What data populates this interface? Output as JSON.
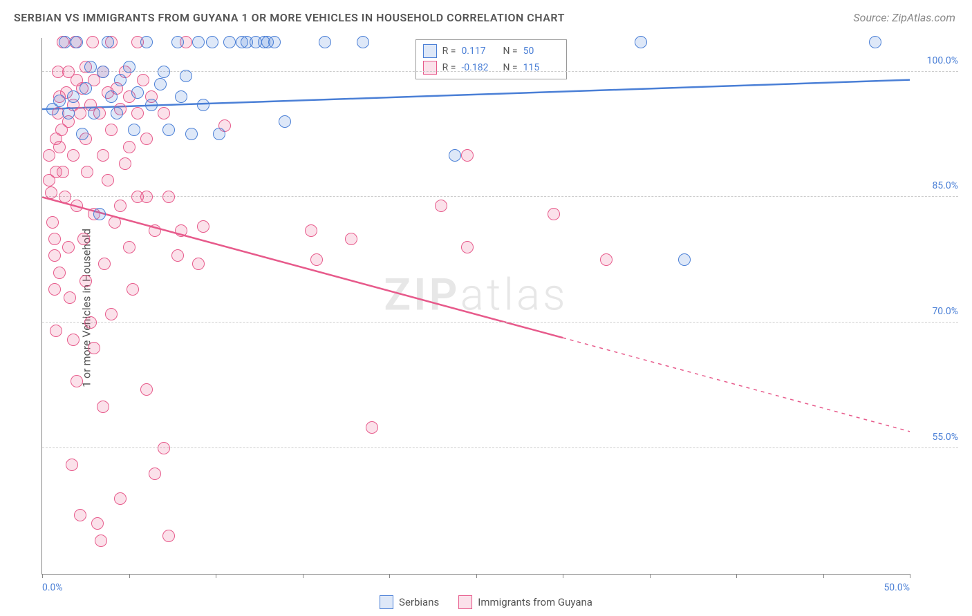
{
  "title": "SERBIAN VS IMMIGRANTS FROM GUYANA 1 OR MORE VEHICLES IN HOUSEHOLD CORRELATION CHART",
  "source": "Source: ZipAtlas.com",
  "ylabel": "1 or more Vehicles in Household",
  "watermark_a": "ZIP",
  "watermark_b": "atlas",
  "chart": {
    "type": "scatter",
    "background_color": "#ffffff",
    "grid_color": "#cccccc",
    "axis_color": "#888888",
    "tick_label_color": "#4a7fd6",
    "xlim": [
      0,
      50
    ],
    "ylim": [
      40,
      104
    ],
    "xticks": [
      0,
      25,
      50
    ],
    "xtick_labels": [
      "0.0%",
      "",
      "50.0%"
    ],
    "x_minor_ticks": [
      5,
      10,
      15,
      20,
      25,
      30,
      35,
      40,
      45
    ],
    "yticks": [
      55,
      70,
      85,
      100
    ],
    "ytick_labels": [
      "55.0%",
      "70.0%",
      "85.0%",
      "100.0%"
    ],
    "marker_radius": 9,
    "marker_stroke_width": 1.5,
    "marker_fill_opacity": 0.18
  },
  "series": {
    "serbians": {
      "label": "Serbians",
      "color": "#4a7fd6",
      "fill": "rgba(74,127,214,0.18)",
      "R": "0.117",
      "N": "50",
      "trend": {
        "x1": 0,
        "y1": 95.5,
        "x2": 50,
        "y2": 99.0,
        "solid_until_x": 50
      },
      "points": [
        [
          0.6,
          95.5
        ],
        [
          1.0,
          96.5
        ],
        [
          1.3,
          103.5
        ],
        [
          1.5,
          95.0
        ],
        [
          1.8,
          97.0
        ],
        [
          2.0,
          103.5
        ],
        [
          2.3,
          92.5
        ],
        [
          2.5,
          98.0
        ],
        [
          2.8,
          100.5
        ],
        [
          3.0,
          95.0
        ],
        [
          3.3,
          83.0
        ],
        [
          3.5,
          100.0
        ],
        [
          3.8,
          103.5
        ],
        [
          4.0,
          97.0
        ],
        [
          4.3,
          95.0
        ],
        [
          4.5,
          99.0
        ],
        [
          5.0,
          100.5
        ],
        [
          5.3,
          93.0
        ],
        [
          5.5,
          97.5
        ],
        [
          6.0,
          103.5
        ],
        [
          6.3,
          96.0
        ],
        [
          6.8,
          98.5
        ],
        [
          7.0,
          100.0
        ],
        [
          7.3,
          93.0
        ],
        [
          7.8,
          103.5
        ],
        [
          8.0,
          97.0
        ],
        [
          8.3,
          99.5
        ],
        [
          8.6,
          92.5
        ],
        [
          9.0,
          103.5
        ],
        [
          9.3,
          96.0
        ],
        [
          9.8,
          103.5
        ],
        [
          10.2,
          92.5
        ],
        [
          10.8,
          103.5
        ],
        [
          11.5,
          103.5
        ],
        [
          11.8,
          103.5
        ],
        [
          12.3,
          103.5
        ],
        [
          12.8,
          103.5
        ],
        [
          13.0,
          103.5
        ],
        [
          13.4,
          103.5
        ],
        [
          14.0,
          94.0
        ],
        [
          16.3,
          103.5
        ],
        [
          18.5,
          103.5
        ],
        [
          23.8,
          90.0
        ],
        [
          34.5,
          103.5
        ],
        [
          37.0,
          77.5
        ],
        [
          48.0,
          103.5
        ]
      ]
    },
    "guyana": {
      "label": "Immigrants from Guyana",
      "color": "#e75a8b",
      "fill": "rgba(231,90,139,0.18)",
      "R": "-0.182",
      "N": "115",
      "trend": {
        "x1": 0,
        "y1": 85.0,
        "x2": 50,
        "y2": 57.0,
        "solid_until_x": 30
      },
      "points": [
        [
          0.4,
          90.0
        ],
        [
          0.4,
          87.0
        ],
        [
          0.5,
          85.5
        ],
        [
          0.6,
          82.0
        ],
        [
          0.7,
          80.0
        ],
        [
          0.7,
          78.0
        ],
        [
          0.7,
          74.0
        ],
        [
          0.8,
          88.0
        ],
        [
          0.8,
          92.0
        ],
        [
          0.8,
          69.0
        ],
        [
          0.9,
          95.0
        ],
        [
          0.9,
          100.0
        ],
        [
          1.0,
          97.0
        ],
        [
          1.0,
          91.0
        ],
        [
          1.0,
          76.0
        ],
        [
          1.1,
          93.0
        ],
        [
          1.2,
          103.5
        ],
        [
          1.2,
          88.0
        ],
        [
          1.3,
          85.0
        ],
        [
          1.4,
          97.5
        ],
        [
          1.5,
          100.0
        ],
        [
          1.5,
          94.0
        ],
        [
          1.5,
          79.0
        ],
        [
          1.6,
          73.0
        ],
        [
          1.7,
          53.0
        ],
        [
          1.8,
          96.0
        ],
        [
          1.8,
          90.0
        ],
        [
          1.8,
          68.0
        ],
        [
          1.9,
          103.5
        ],
        [
          2.0,
          99.0
        ],
        [
          2.0,
          84.0
        ],
        [
          2.0,
          63.0
        ],
        [
          2.2,
          47.0
        ],
        [
          2.2,
          95.0
        ],
        [
          2.3,
          98.0
        ],
        [
          2.4,
          80.0
        ],
        [
          2.5,
          100.5
        ],
        [
          2.5,
          92.0
        ],
        [
          2.5,
          75.0
        ],
        [
          2.6,
          88.0
        ],
        [
          2.8,
          96.0
        ],
        [
          2.8,
          70.0
        ],
        [
          2.9,
          103.5
        ],
        [
          3.0,
          99.0
        ],
        [
          3.0,
          83.0
        ],
        [
          3.0,
          67.0
        ],
        [
          3.2,
          46.0
        ],
        [
          3.3,
          95.0
        ],
        [
          3.4,
          44.0
        ],
        [
          3.5,
          100.0
        ],
        [
          3.5,
          90.0
        ],
        [
          3.5,
          60.0
        ],
        [
          3.6,
          77.0
        ],
        [
          3.8,
          97.5
        ],
        [
          3.8,
          87.0
        ],
        [
          4.0,
          103.5
        ],
        [
          4.0,
          93.0
        ],
        [
          4.0,
          71.0
        ],
        [
          4.2,
          82.0
        ],
        [
          4.3,
          98.0
        ],
        [
          4.5,
          95.5
        ],
        [
          4.5,
          84.0
        ],
        [
          4.5,
          49.0
        ],
        [
          4.8,
          100.0
        ],
        [
          4.8,
          89.0
        ],
        [
          5.0,
          97.0
        ],
        [
          5.0,
          91.0
        ],
        [
          5.0,
          79.0
        ],
        [
          5.2,
          74.0
        ],
        [
          5.5,
          103.5
        ],
        [
          5.5,
          95.0
        ],
        [
          5.5,
          85.0
        ],
        [
          5.8,
          99.0
        ],
        [
          6.0,
          92.0
        ],
        [
          6.0,
          85.0
        ],
        [
          6.0,
          62.0
        ],
        [
          6.3,
          97.0
        ],
        [
          6.5,
          81.0
        ],
        [
          6.5,
          52.0
        ],
        [
          7.0,
          55.0
        ],
        [
          7.0,
          95.0
        ],
        [
          7.3,
          85.0
        ],
        [
          7.3,
          44.5
        ],
        [
          7.8,
          78.0
        ],
        [
          8.0,
          81.0
        ],
        [
          8.3,
          103.5
        ],
        [
          9.0,
          77.0
        ],
        [
          9.3,
          81.5
        ],
        [
          10.5,
          93.5
        ],
        [
          15.5,
          81.0
        ],
        [
          15.8,
          77.5
        ],
        [
          17.8,
          80.0
        ],
        [
          19.0,
          57.5
        ],
        [
          23.0,
          84.0
        ],
        [
          24.5,
          90.0
        ],
        [
          24.5,
          79.0
        ],
        [
          29.5,
          83.0
        ],
        [
          32.5,
          77.5
        ]
      ]
    }
  },
  "legend_top": {
    "R_label": "R =",
    "N_label": "N ="
  },
  "legend_bottom_order": [
    "serbians",
    "guyana"
  ]
}
